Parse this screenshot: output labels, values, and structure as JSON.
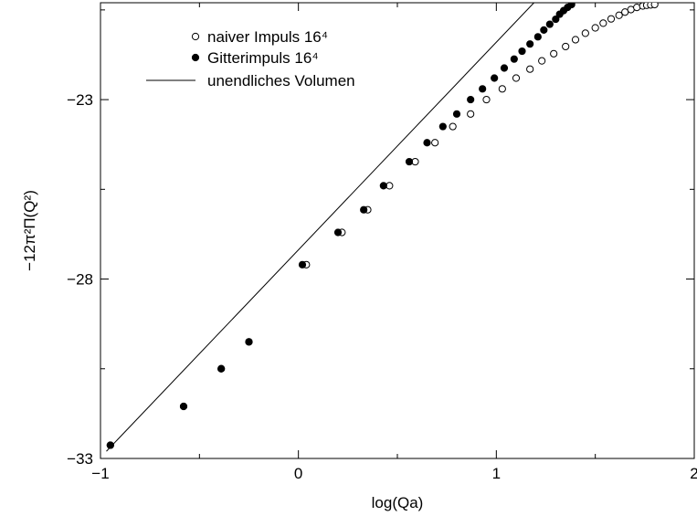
{
  "chart_data": {
    "type": "scatter",
    "xlabel": "log(Qa)",
    "ylabel": "−12π²Π(Q²)",
    "xlim": [
      -1,
      2
    ],
    "ylim": [
      -33,
      -20.3
    ],
    "x_ticks": [
      -1,
      0,
      1,
      2
    ],
    "x_tick_labels": [
      "−1",
      "0",
      "1",
      "2"
    ],
    "y_ticks": [
      -33,
      -28,
      -23
    ],
    "y_tick_labels": [
      "−33",
      "−28",
      "−23"
    ],
    "grid": false,
    "legend_position": "top-center",
    "series": [
      {
        "name": "naiver Impuls 16⁴",
        "marker": "open-circle",
        "x": [
          -0.95,
          -0.58,
          -0.39,
          -0.25,
          0.04,
          0.22,
          0.35,
          0.46,
          0.59,
          0.69,
          0.78,
          0.87,
          0.95,
          1.03,
          1.1,
          1.17,
          1.23,
          1.29,
          1.35,
          1.4,
          1.45,
          1.5,
          1.54,
          1.58,
          1.62,
          1.65,
          1.68,
          1.71,
          1.74,
          1.76,
          1.78,
          1.8
        ],
        "y": [
          -32.63,
          -31.55,
          -30.5,
          -29.75,
          -27.6,
          -26.7,
          -26.07,
          -25.4,
          -24.73,
          -24.2,
          -23.75,
          -23.4,
          -23.0,
          -22.7,
          -22.4,
          -22.15,
          -21.92,
          -21.72,
          -21.52,
          -21.33,
          -21.15,
          -21.0,
          -20.87,
          -20.75,
          -20.65,
          -20.56,
          -20.49,
          -20.43,
          -20.39,
          -20.37,
          -20.36,
          -20.35
        ]
      },
      {
        "name": "Gitterimpuls 16⁴",
        "marker": "filled-circle",
        "x": [
          -0.95,
          -0.58,
          -0.39,
          -0.25,
          0.02,
          0.2,
          0.33,
          0.43,
          0.56,
          0.65,
          0.73,
          0.8,
          0.87,
          0.93,
          0.99,
          1.04,
          1.09,
          1.13,
          1.17,
          1.21,
          1.24,
          1.27,
          1.3,
          1.32,
          1.34,
          1.36,
          1.38
        ],
        "y": [
          -32.63,
          -31.55,
          -30.5,
          -29.75,
          -27.6,
          -26.7,
          -26.07,
          -25.4,
          -24.73,
          -24.2,
          -23.75,
          -23.4,
          -23.0,
          -22.7,
          -22.4,
          -22.12,
          -21.87,
          -21.65,
          -21.45,
          -21.25,
          -21.06,
          -20.9,
          -20.76,
          -20.62,
          -20.52,
          -20.43,
          -20.35
        ]
      },
      {
        "name": "unendliches Volumen",
        "marker": "line",
        "x": [
          -0.97,
          1.19
        ],
        "y": [
          -32.8,
          -20.3
        ]
      }
    ]
  }
}
